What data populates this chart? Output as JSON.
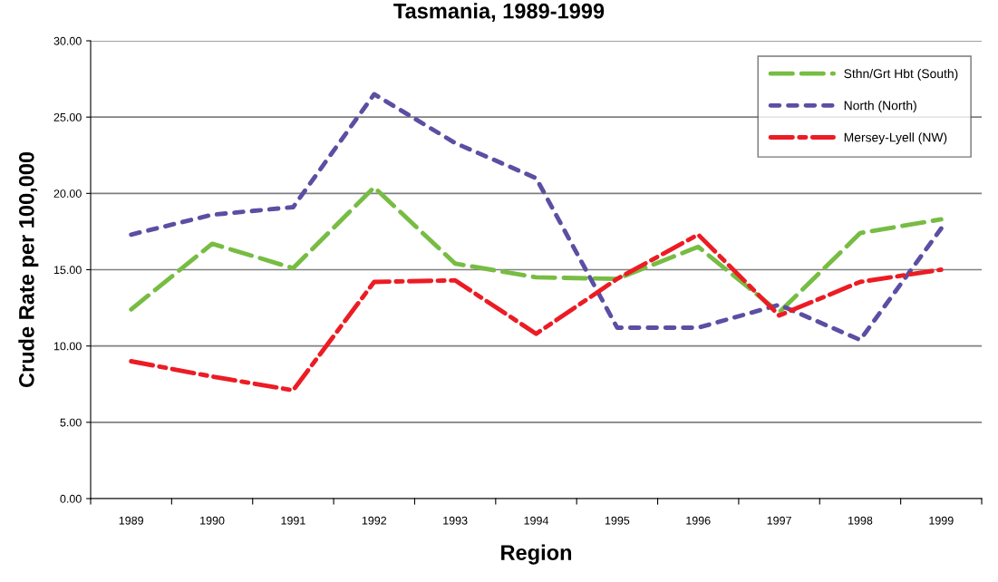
{
  "chart_data": {
    "type": "line",
    "title": "Tasmania, 1989-1999",
    "xlabel": "Region",
    "ylabel": "Crude Rate per 100,000",
    "categories": [
      "1989",
      "1990",
      "1991",
      "1992",
      "1993",
      "1994",
      "1995",
      "1996",
      "1997",
      "1998",
      "1999"
    ],
    "series": [
      {
        "name": "Sthn/Grt Hbt (South)",
        "color": "#77bc43",
        "line_style": "dashed",
        "values": [
          12.4,
          16.7,
          15.1,
          20.4,
          15.4,
          14.5,
          14.4,
          16.5,
          12.2,
          17.4,
          18.3
        ]
      },
      {
        "name": "North (North)",
        "color": "#5a4fa3",
        "line_style": "dotted",
        "values": [
          17.3,
          18.6,
          19.1,
          26.5,
          23.3,
          21.0,
          11.2,
          11.2,
          12.7,
          10.4,
          17.7
        ]
      },
      {
        "name": "Mersey-Lyell (NW)",
        "color": "#ec1c24",
        "line_style": "dashdot",
        "values": [
          9.0,
          8.0,
          7.1,
          14.2,
          14.3,
          10.8,
          14.4,
          17.3,
          12.0,
          14.2,
          15.0
        ]
      }
    ],
    "ylim": [
      0,
      30
    ],
    "yticks": [
      {
        "value": 0,
        "label": "0.00"
      },
      {
        "value": 5,
        "label": "5.00"
      },
      {
        "value": 10,
        "label": "10.00"
      },
      {
        "value": 15,
        "label": "15.00"
      },
      {
        "value": 20,
        "label": "20.00"
      },
      {
        "value": 25,
        "label": "25.00"
      },
      {
        "value": 30,
        "label": "30.00"
      }
    ],
    "grid": "y",
    "legend": "top right",
    "marker": "none"
  }
}
